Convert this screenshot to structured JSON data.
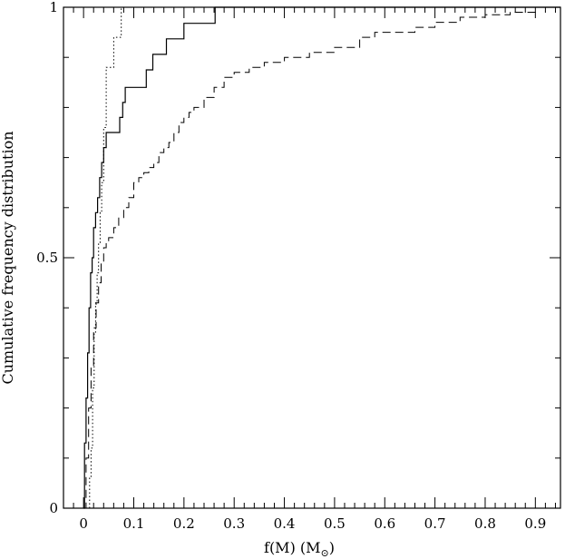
{
  "chart_data": {
    "type": "line",
    "step": true,
    "title": "",
    "xlabel": "f(M) (M",
    "xlabel_subscript": "⊙",
    "xlabel_close": ")",
    "ylabel": "Cumulative frequency distribution",
    "xlim": [
      -0.04,
      0.95
    ],
    "ylim": [
      0,
      1
    ],
    "grid": false,
    "legend": "none",
    "x_ticks": [
      0,
      0.1,
      0.2,
      0.3,
      0.4,
      0.5,
      0.6,
      0.7,
      0.8,
      0.9
    ],
    "x_tick_labels": [
      "0",
      "0.1",
      "0.2",
      "0.3",
      "0.4",
      "0.5",
      "0.6",
      "0.7",
      "0.8",
      "0.9"
    ],
    "y_ticks": [
      0,
      0.5,
      1
    ],
    "y_tick_labels": [
      "0",
      "0.5",
      "1"
    ],
    "series": [
      {
        "style": "solid",
        "x": [
          0.0,
          0.002,
          0.005,
          0.008,
          0.011,
          0.014,
          0.017,
          0.02,
          0.024,
          0.028,
          0.032,
          0.036,
          0.04,
          0.045,
          0.072,
          0.078,
          0.083,
          0.088,
          0.125,
          0.13,
          0.138,
          0.15,
          0.165,
          0.2,
          0.262,
          0.95
        ],
        "y": [
          0.0,
          0.13,
          0.22,
          0.31,
          0.4,
          0.47,
          0.5,
          0.56,
          0.59,
          0.62,
          0.66,
          0.69,
          0.72,
          0.75,
          0.78,
          0.81,
          0.84,
          0.84,
          0.875,
          0.875,
          0.906,
          0.906,
          0.937,
          0.968,
          1.0,
          1.0
        ]
      },
      {
        "style": "dotted",
        "x": [
          0.012,
          0.015,
          0.018,
          0.021,
          0.024,
          0.027,
          0.03,
          0.033,
          0.036,
          0.04,
          0.045,
          0.055,
          0.06,
          0.065,
          0.075,
          0.95
        ],
        "y": [
          0.06,
          0.12,
          0.24,
          0.35,
          0.41,
          0.47,
          0.53,
          0.59,
          0.65,
          0.76,
          0.88,
          0.88,
          0.94,
          0.94,
          1.0,
          1.0
        ]
      },
      {
        "style": "dashed",
        "x": [
          0.0,
          0.005,
          0.01,
          0.015,
          0.02,
          0.025,
          0.03,
          0.035,
          0.04,
          0.045,
          0.05,
          0.06,
          0.07,
          0.08,
          0.09,
          0.1,
          0.11,
          0.12,
          0.13,
          0.14,
          0.15,
          0.16,
          0.17,
          0.18,
          0.19,
          0.2,
          0.21,
          0.22,
          0.24,
          0.26,
          0.28,
          0.3,
          0.33,
          0.36,
          0.4,
          0.45,
          0.5,
          0.55,
          0.58,
          0.62,
          0.66,
          0.7,
          0.75,
          0.8,
          0.85,
          0.9,
          0.95
        ],
        "y": [
          0.0,
          0.1,
          0.2,
          0.28,
          0.36,
          0.41,
          0.45,
          0.49,
          0.52,
          0.53,
          0.54,
          0.56,
          0.58,
          0.6,
          0.62,
          0.65,
          0.66,
          0.67,
          0.68,
          0.69,
          0.71,
          0.72,
          0.73,
          0.75,
          0.77,
          0.78,
          0.79,
          0.8,
          0.82,
          0.84,
          0.86,
          0.87,
          0.88,
          0.89,
          0.9,
          0.91,
          0.92,
          0.94,
          0.95,
          0.95,
          0.96,
          0.97,
          0.98,
          0.985,
          0.99,
          1.0,
          1.0
        ]
      }
    ]
  }
}
